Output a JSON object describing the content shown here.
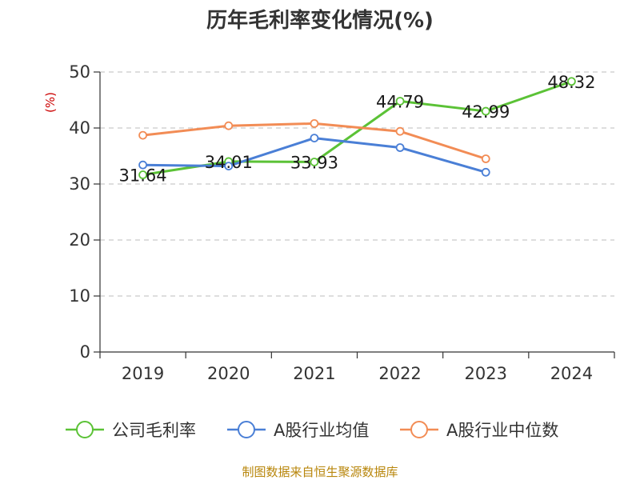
{
  "chart_data": {
    "type": "line",
    "title": "历年毛利率变化情况(%)",
    "ylabel": "(%)",
    "xlabel": "",
    "categories": [
      "2019",
      "2020",
      "2021",
      "2022",
      "2023",
      "2024"
    ],
    "ylim": [
      0,
      50
    ],
    "yticks": [
      0,
      10,
      20,
      30,
      40,
      50
    ],
    "grid": true,
    "legend_position": "bottom",
    "series": [
      {
        "name": "公司毛利率",
        "color": "#5bc236",
        "values": [
          31.64,
          34.01,
          33.93,
          44.79,
          42.99,
          48.32
        ],
        "data_labels": [
          "31.64",
          "34.01",
          "33.93",
          "44.79",
          "42.99",
          "48.32"
        ]
      },
      {
        "name": "A股行业均值",
        "color": "#4a7fd6",
        "values": [
          33.4,
          33.2,
          38.2,
          36.5,
          32.1,
          null
        ]
      },
      {
        "name": "A股行业中位数",
        "color": "#f28c55",
        "values": [
          38.7,
          40.4,
          40.8,
          39.4,
          34.5,
          null
        ]
      }
    ]
  },
  "source": "制图数据来自恒生聚源数据库"
}
